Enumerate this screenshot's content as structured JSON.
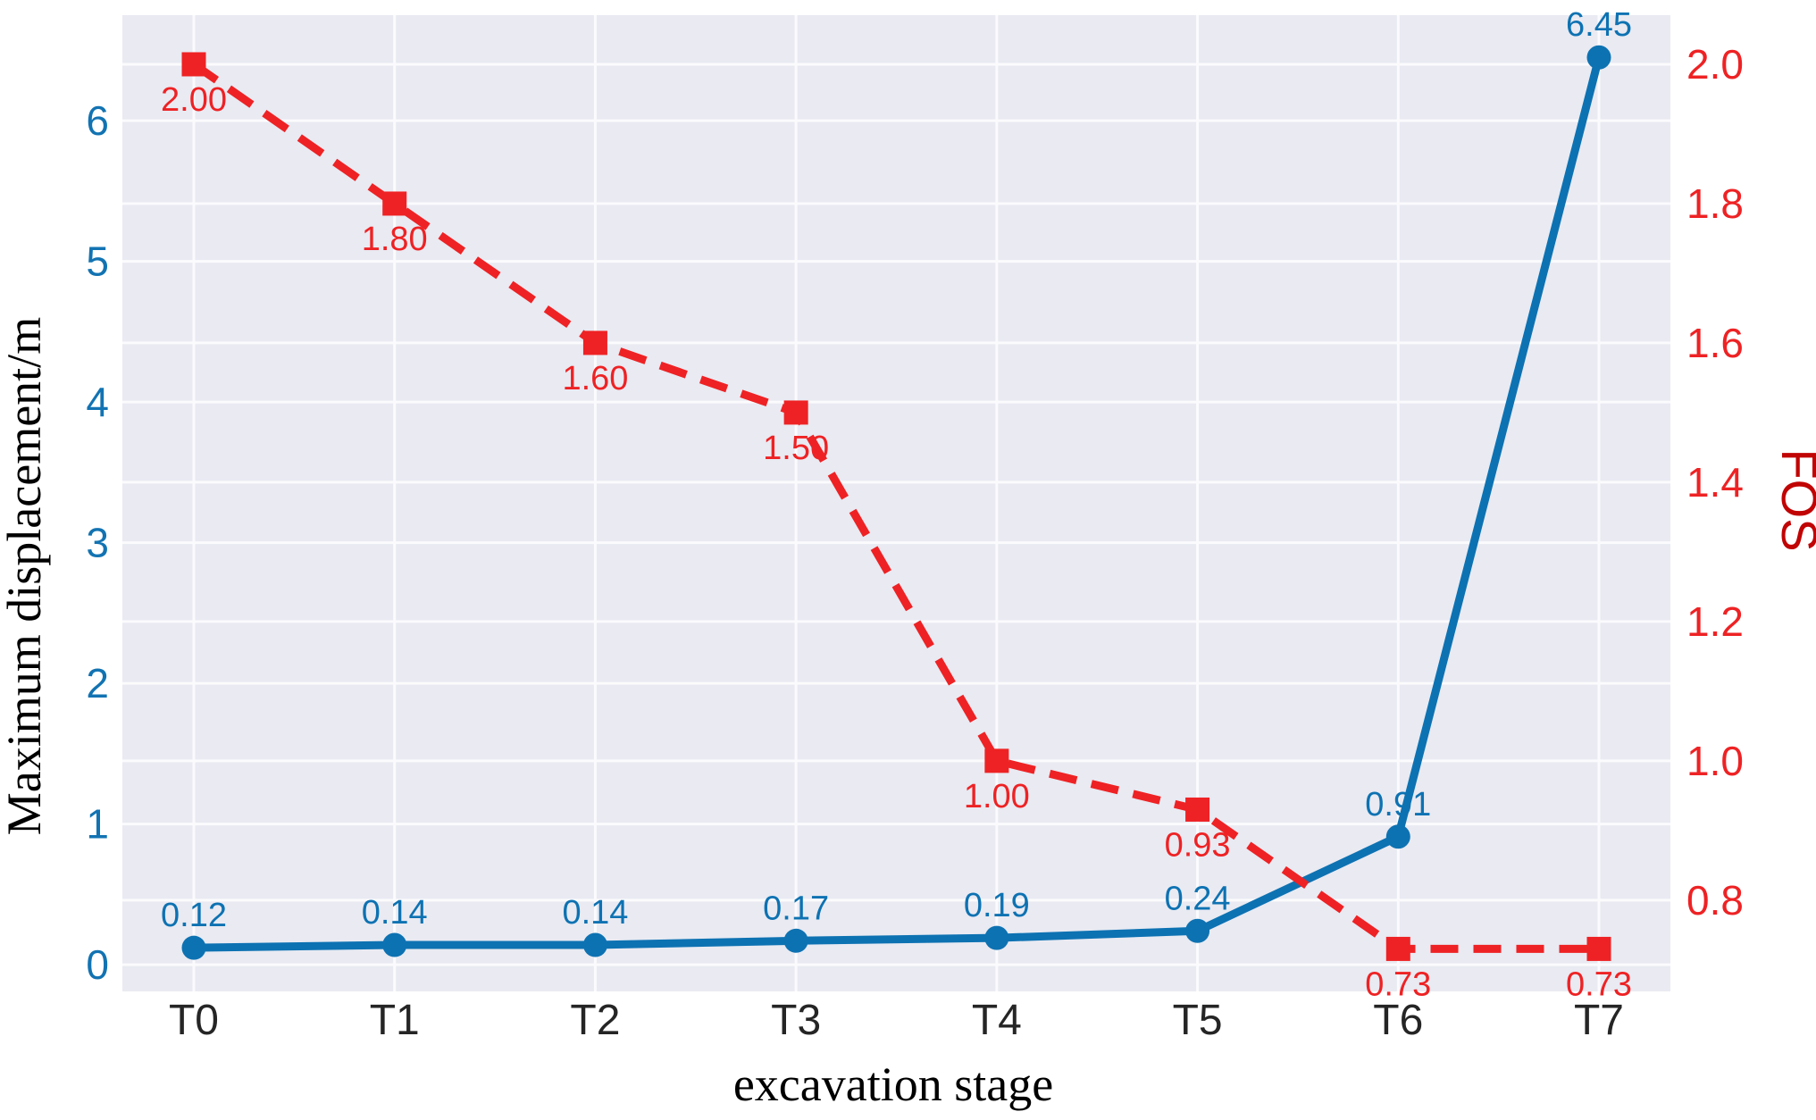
{
  "figure": {
    "background": "#ffffff",
    "plot_background": "#e9eaf2",
    "grid_color": "#fbfbfd"
  },
  "axes": {
    "x": {
      "title": "excavation stage",
      "title_color": "#000000",
      "tick_color": "#252525",
      "categories": [
        "T0",
        "T1",
        "T2",
        "T3",
        "T4",
        "T5",
        "T6",
        "T7"
      ]
    },
    "left": {
      "title": "Maximum displacement/m",
      "title_color": "#2e8fd0",
      "tick_color": "#1273b2",
      "tick_labels": [
        "0",
        "1",
        "2",
        "3",
        "4",
        "5",
        "6"
      ],
      "tick_values": [
        0,
        1,
        2,
        3,
        4,
        5,
        6
      ]
    },
    "right": {
      "title": "FOS",
      "title_color": "#c10404",
      "tick_color": "#ee2224",
      "tick_labels": [
        "2.0",
        "1.8",
        "1.6",
        "1.4",
        "1.2",
        "1.0",
        "0.8"
      ],
      "tick_values": [
        2.0,
        1.8,
        1.6,
        1.4,
        1.2,
        1.0,
        0.8
      ]
    }
  },
  "chart_data": {
    "type": "line",
    "title": "",
    "xlabel": "excavation stage",
    "ylabel_left": "Maximum displacement/m",
    "ylabel_right": "FOS",
    "categories": [
      "T0",
      "T1",
      "T2",
      "T3",
      "T4",
      "T5",
      "T6",
      "T7"
    ],
    "series": [
      {
        "name": "Maximum displacement/m",
        "axis": "left",
        "color": "#0d72b2",
        "line_style": "solid",
        "marker": "circle",
        "values": [
          0.12,
          0.14,
          0.14,
          0.17,
          0.19,
          0.24,
          0.91,
          6.45
        ],
        "point_labels": [
          "0.12",
          "0.14",
          "0.14",
          "0.17",
          "0.19",
          "0.24",
          "0.91",
          "6.45"
        ],
        "label_position": "above"
      },
      {
        "name": "FOS",
        "axis": "right",
        "color": "#ee2224",
        "line_style": "dashed",
        "marker": "square",
        "values": [
          2.0,
          1.8,
          1.6,
          1.5,
          1.0,
          0.93,
          0.73,
          0.73
        ],
        "point_labels": [
          "2.00",
          "1.80",
          "1.60",
          "1.50",
          "1.00",
          "0.93",
          "0.73",
          "0.73"
        ],
        "label_position": "below"
      }
    ],
    "left_axis_range": [
      -0.19,
      6.75
    ],
    "right_axis_range": [
      0.669,
      2.0705
    ],
    "grid": true,
    "legend": "none"
  }
}
